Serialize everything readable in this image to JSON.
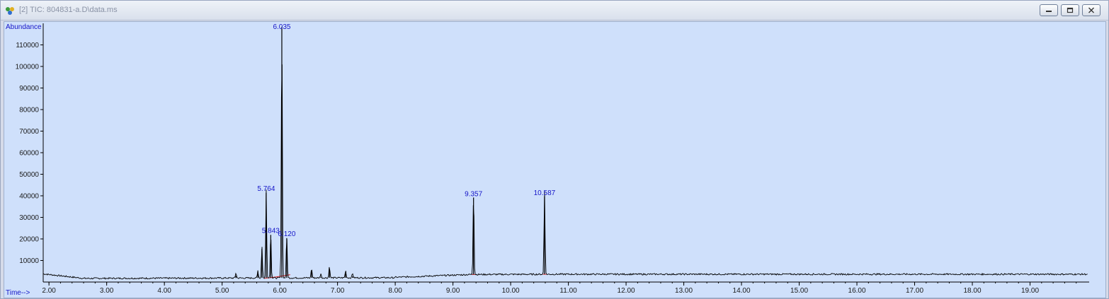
{
  "window": {
    "title": "[2] TIC: 804831-a.D\\data.ms",
    "minimize_icon": "minimize-icon",
    "restore_icon": "restore-icon",
    "close_icon": "close-icon"
  },
  "colors": {
    "plot_background": "#cfe0fb",
    "trace": "#000000",
    "peak_label": "#1515c8",
    "baseline": "#e02020"
  },
  "chart_data": {
    "type": "line",
    "ylabel": "Abundance",
    "xlabel": "Time-->",
    "xlim": [
      1.9,
      20.0
    ],
    "ylim": [
      0,
      120000
    ],
    "x_ticks": [
      "2.00",
      "3.00",
      "4.00",
      "5.00",
      "6.00",
      "7.00",
      "8.00",
      "9.00",
      "10.00",
      "11.00",
      "12.00",
      "13.00",
      "14.00",
      "15.00",
      "16.00",
      "17.00",
      "18.00",
      "19.00"
    ],
    "y_ticks": [
      "10000",
      "20000",
      "30000",
      "40000",
      "50000",
      "60000",
      "70000",
      "80000",
      "90000",
      "100000",
      "110000"
    ],
    "peaks": [
      {
        "rt": 5.764,
        "label": "5.764",
        "height": 41000
      },
      {
        "rt": 5.843,
        "label": "5.843",
        "height": 21500
      },
      {
        "rt": 6.035,
        "label": "6.035",
        "height": 118000
      },
      {
        "rt": 6.12,
        "label": "6.120",
        "height": 20000
      },
      {
        "rt": 9.357,
        "label": "9.357",
        "height": 38500
      },
      {
        "rt": 10.587,
        "label": "10.587",
        "height": 39000
      }
    ],
    "minor_peaks": [
      {
        "rt": 5.69,
        "height": 15000
      },
      {
        "rt": 5.62,
        "height": 3500
      },
      {
        "rt": 5.24,
        "height": 2500
      },
      {
        "rt": 6.55,
        "height": 4500
      },
      {
        "rt": 6.71,
        "height": 2000
      },
      {
        "rt": 6.86,
        "height": 5500
      },
      {
        "rt": 7.14,
        "height": 3500
      },
      {
        "rt": 7.26,
        "height": 2200
      }
    ]
  }
}
